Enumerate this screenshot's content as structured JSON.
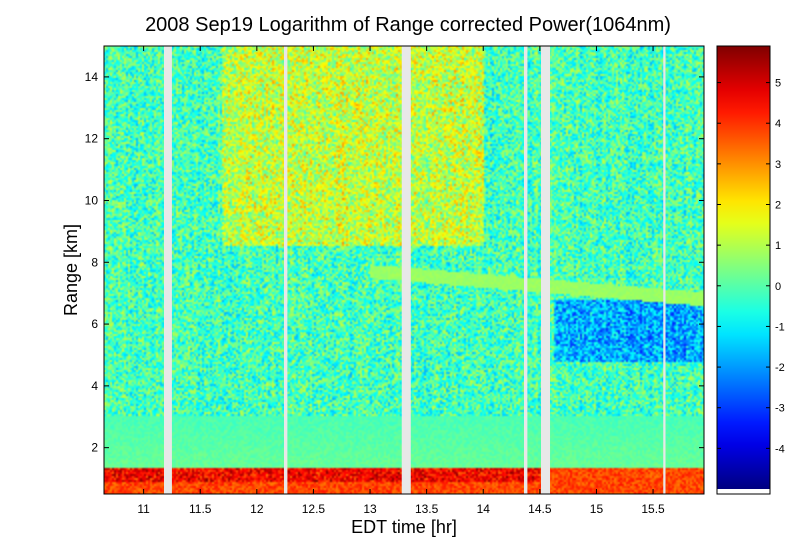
{
  "chart_data": {
    "type": "heatmap",
    "title": "2008 Sep19  Logarithm of Range corrected Power(1064nm)",
    "xlabel": "EDT time [hr]",
    "ylabel": "Range [km]",
    "xlim": [
      10.65,
      15.95
    ],
    "ylim": [
      0.5,
      15
    ],
    "x_ticks": [
      {
        "value": 11,
        "label": "11"
      },
      {
        "value": 11.5,
        "label": "11.5"
      },
      {
        "value": 12,
        "label": "12"
      },
      {
        "value": 12.5,
        "label": "12.5"
      },
      {
        "value": 13,
        "label": "13"
      },
      {
        "value": 13.5,
        "label": "13.5"
      },
      {
        "value": 14,
        "label": "14"
      },
      {
        "value": 14.5,
        "label": "14.5"
      },
      {
        "value": 15,
        "label": "15"
      },
      {
        "value": 15.5,
        "label": "15.5"
      }
    ],
    "y_ticks": [
      {
        "value": 2,
        "label": "2"
      },
      {
        "value": 4,
        "label": "4"
      },
      {
        "value": 6,
        "label": "6"
      },
      {
        "value": 8,
        "label": "8"
      },
      {
        "value": 10,
        "label": "10"
      },
      {
        "value": 12,
        "label": "12"
      },
      {
        "value": 14,
        "label": "14"
      }
    ],
    "colorbar": {
      "range": [
        -5,
        5.9
      ],
      "ticks": [
        {
          "value": 5,
          "label": "5"
        },
        {
          "value": 4,
          "label": "4"
        },
        {
          "value": 3,
          "label": "3"
        },
        {
          "value": 2,
          "label": "2"
        },
        {
          "value": 1,
          "label": "1"
        },
        {
          "value": 0,
          "label": "0"
        },
        {
          "value": -1,
          "label": "-1"
        },
        {
          "value": -2,
          "label": "-2"
        },
        {
          "value": -3,
          "label": "-3"
        },
        {
          "value": -4,
          "label": "-4"
        }
      ],
      "colormap": "jet"
    },
    "data_gaps": [
      {
        "start": 11.18,
        "end": 11.25
      },
      {
        "start": 12.24,
        "end": 12.27
      },
      {
        "start": 13.28,
        "end": 13.36
      },
      {
        "start": 14.36,
        "end": 14.39
      },
      {
        "start": 14.51,
        "end": 14.59
      },
      {
        "start": 15.59,
        "end": 15.61
      }
    ],
    "layers": {
      "boundary_layer_top_km": 1.35,
      "aerosol_layer_km": [
        0.5,
        3.0
      ],
      "cirrus_band": {
        "start_hr": 13.0,
        "start_km": 7.7,
        "end_hr": 15.95,
        "end_km": 6.8
      },
      "high_cloud_region": {
        "start_hr": 11.7,
        "end_hr": 14.0,
        "min_km": 8.5
      }
    }
  }
}
